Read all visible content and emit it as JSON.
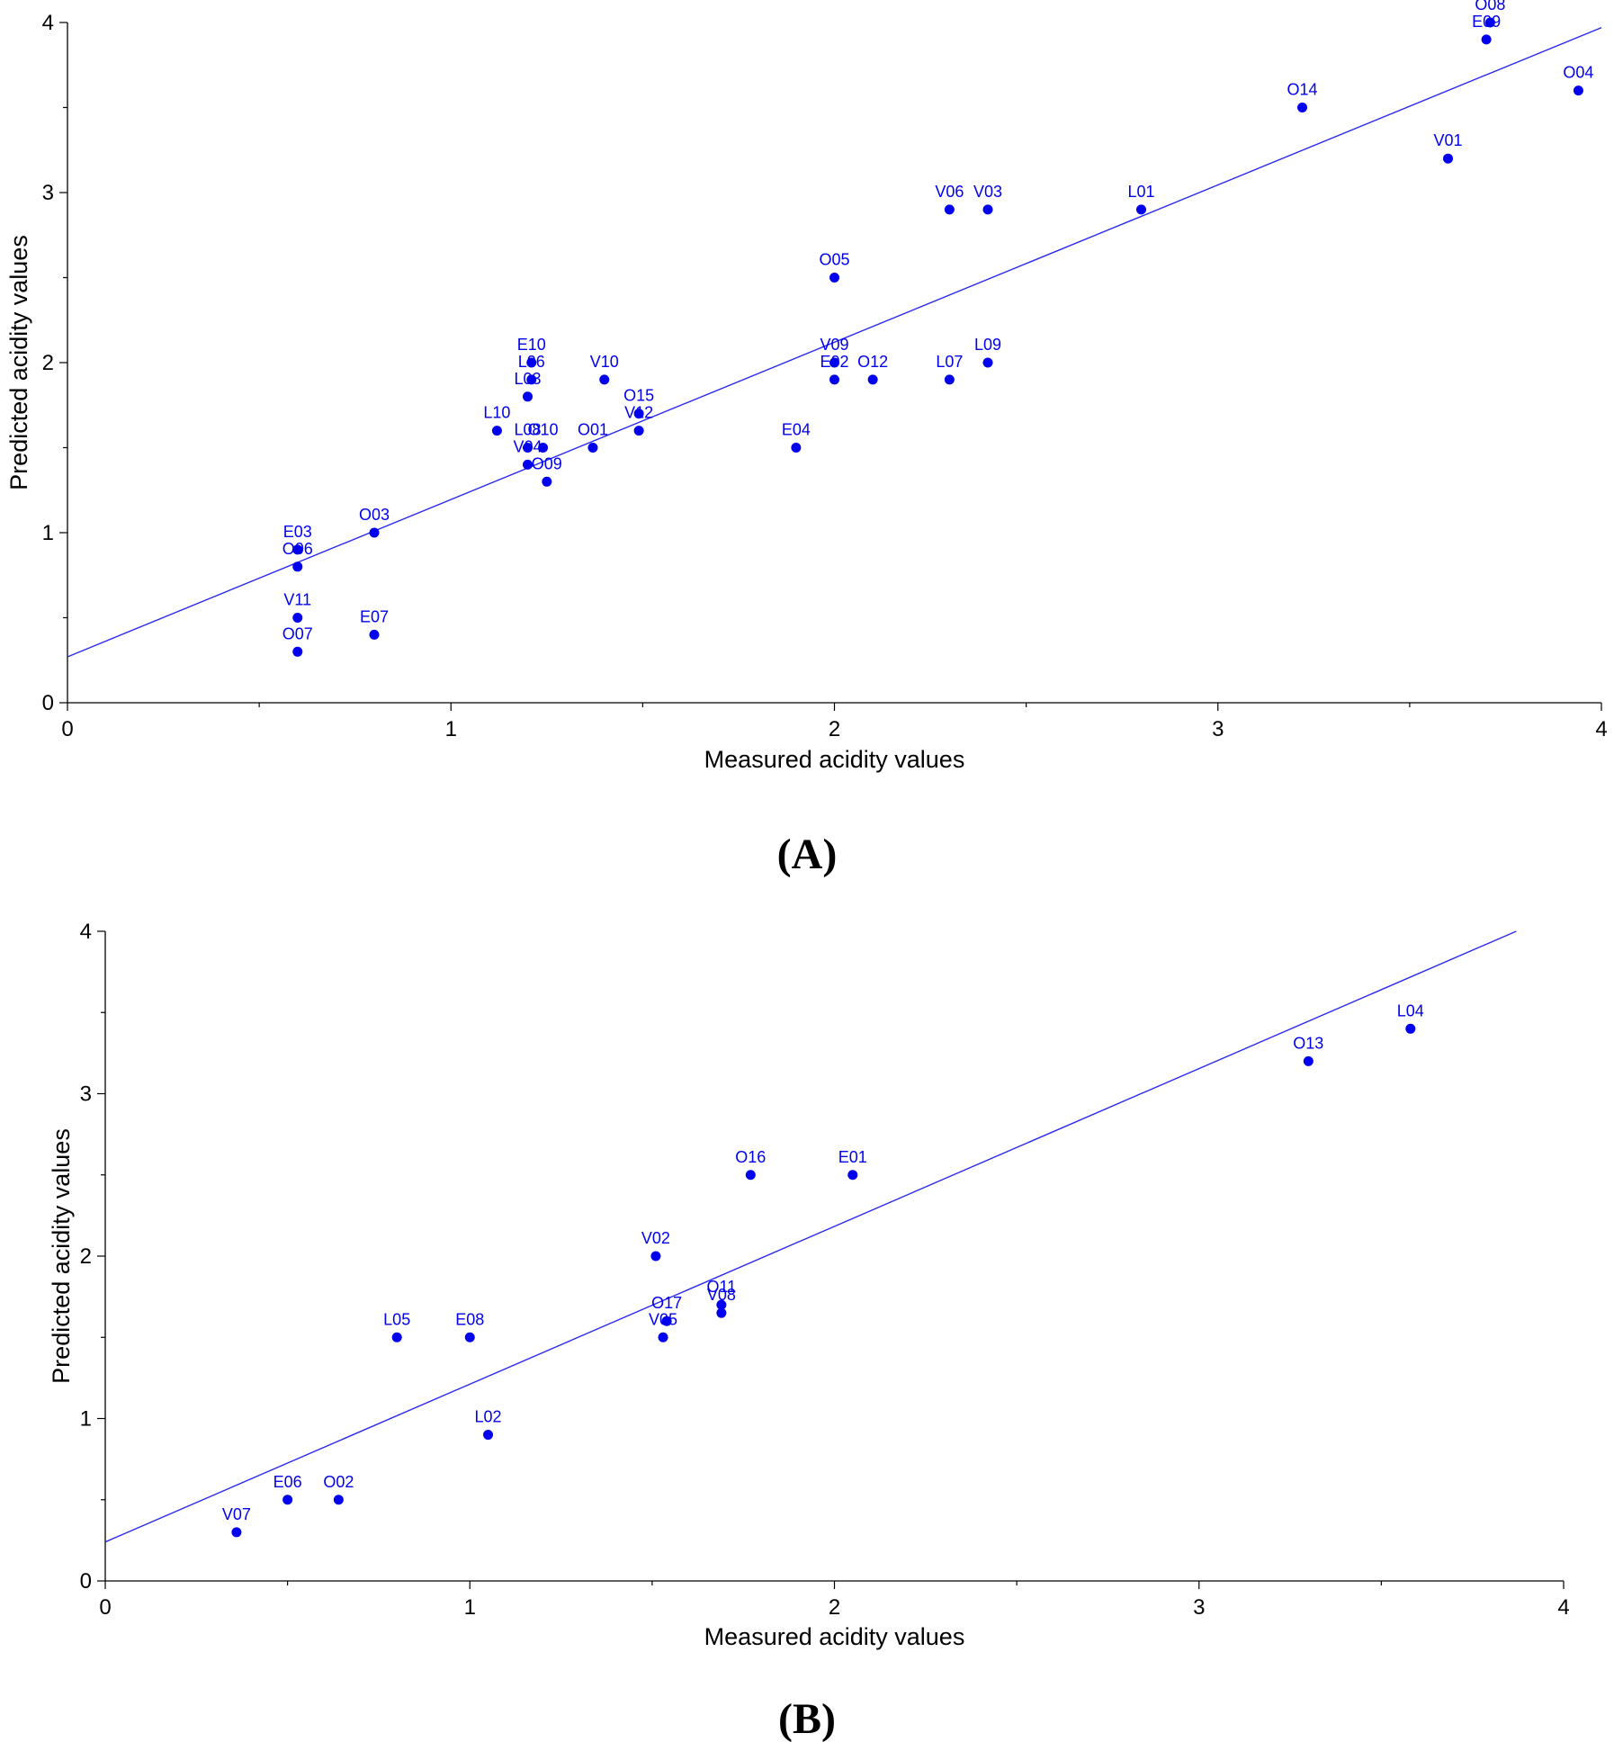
{
  "colors": {
    "points": "#0000ee",
    "fit_line": "#2a2af0",
    "axes": "#000000"
  },
  "chart_data": [
    {
      "type": "scatter",
      "panel_label": "(A)",
      "xlabel": "Measured acidity values",
      "ylabel": "Predicted acidity values",
      "xlim": [
        0,
        4
      ],
      "ylim": [
        0,
        4
      ],
      "xticks": [
        0,
        1,
        2,
        3,
        4
      ],
      "yticks": [
        0,
        1,
        2,
        3,
        4
      ],
      "fit_line": {
        "x": [
          0,
          4
        ],
        "y": [
          0.27,
          3.97
        ]
      },
      "points": [
        {
          "label": "O07",
          "x": 0.6,
          "y": 0.3
        },
        {
          "label": "V11",
          "x": 0.6,
          "y": 0.5
        },
        {
          "label": "O06",
          "x": 0.6,
          "y": 0.8
        },
        {
          "label": "E03",
          "x": 0.6,
          "y": 0.9
        },
        {
          "label": "O03",
          "x": 0.8,
          "y": 1.0
        },
        {
          "label": "E07",
          "x": 0.8,
          "y": 0.4
        },
        {
          "label": "L10",
          "x": 1.12,
          "y": 1.6
        },
        {
          "label": "V04",
          "x": 1.2,
          "y": 1.4
        },
        {
          "label": "L08",
          "x": 1.2,
          "y": 1.5
        },
        {
          "label": "L03",
          "x": 1.2,
          "y": 1.8
        },
        {
          "label": "L06",
          "x": 1.21,
          "y": 1.9
        },
        {
          "label": "E10",
          "x": 1.21,
          "y": 2.0
        },
        {
          "label": "O10",
          "x": 1.24,
          "y": 1.5
        },
        {
          "label": "O09",
          "x": 1.25,
          "y": 1.3
        },
        {
          "label": "O01",
          "x": 1.37,
          "y": 1.5
        },
        {
          "label": "V10",
          "x": 1.4,
          "y": 1.9
        },
        {
          "label": "V12",
          "x": 1.49,
          "y": 1.6
        },
        {
          "label": "O15",
          "x": 1.49,
          "y": 1.7
        },
        {
          "label": "E04",
          "x": 1.9,
          "y": 1.5
        },
        {
          "label": "E02",
          "x": 2.0,
          "y": 1.9
        },
        {
          "label": "V09",
          "x": 2.0,
          "y": 2.0
        },
        {
          "label": "O05",
          "x": 2.0,
          "y": 2.5
        },
        {
          "label": "O12",
          "x": 2.1,
          "y": 1.9
        },
        {
          "label": "L07",
          "x": 2.3,
          "y": 1.9
        },
        {
          "label": "V06",
          "x": 2.3,
          "y": 2.9
        },
        {
          "label": "L09",
          "x": 2.4,
          "y": 2.0
        },
        {
          "label": "V03",
          "x": 2.4,
          "y": 2.9
        },
        {
          "label": "L01",
          "x": 2.8,
          "y": 2.9
        },
        {
          "label": "O14",
          "x": 3.22,
          "y": 3.5
        },
        {
          "label": "V01",
          "x": 3.6,
          "y": 3.2
        },
        {
          "label": "E09",
          "x": 3.7,
          "y": 3.9
        },
        {
          "label": "O08",
          "x": 3.71,
          "y": 4.0
        },
        {
          "label": "O04",
          "x": 3.94,
          "y": 3.6
        }
      ]
    },
    {
      "type": "scatter",
      "panel_label": "(B)",
      "xlabel": "Measured acidity values",
      "ylabel": "Predicted acidity values",
      "xlim": [
        0,
        4
      ],
      "ylim": [
        0,
        4
      ],
      "xticks": [
        0,
        1,
        2,
        3,
        4
      ],
      "yticks": [
        0,
        1,
        2,
        3,
        4
      ],
      "fit_line": {
        "x": [
          0,
          3.87
        ],
        "y": [
          0.24,
          4.0
        ]
      },
      "points": [
        {
          "label": "V07",
          "x": 0.36,
          "y": 0.3
        },
        {
          "label": "E06",
          "x": 0.5,
          "y": 0.5
        },
        {
          "label": "O02",
          "x": 0.64,
          "y": 0.5
        },
        {
          "label": "L05",
          "x": 0.8,
          "y": 1.5
        },
        {
          "label": "E08",
          "x": 1.0,
          "y": 1.5
        },
        {
          "label": "L02",
          "x": 1.05,
          "y": 0.9
        },
        {
          "label": "V02",
          "x": 1.51,
          "y": 2.0
        },
        {
          "label": "V05",
          "x": 1.53,
          "y": 1.5
        },
        {
          "label": "O17",
          "x": 1.54,
          "y": 1.6
        },
        {
          "label": "V08",
          "x": 1.69,
          "y": 1.65
        },
        {
          "label": "O11",
          "x": 1.69,
          "y": 1.7
        },
        {
          "label": "O16",
          "x": 1.77,
          "y": 2.5
        },
        {
          "label": "E01",
          "x": 2.05,
          "y": 2.5
        },
        {
          "label": "O13",
          "x": 3.3,
          "y": 3.2
        },
        {
          "label": "L04",
          "x": 3.58,
          "y": 3.4
        }
      ]
    }
  ]
}
